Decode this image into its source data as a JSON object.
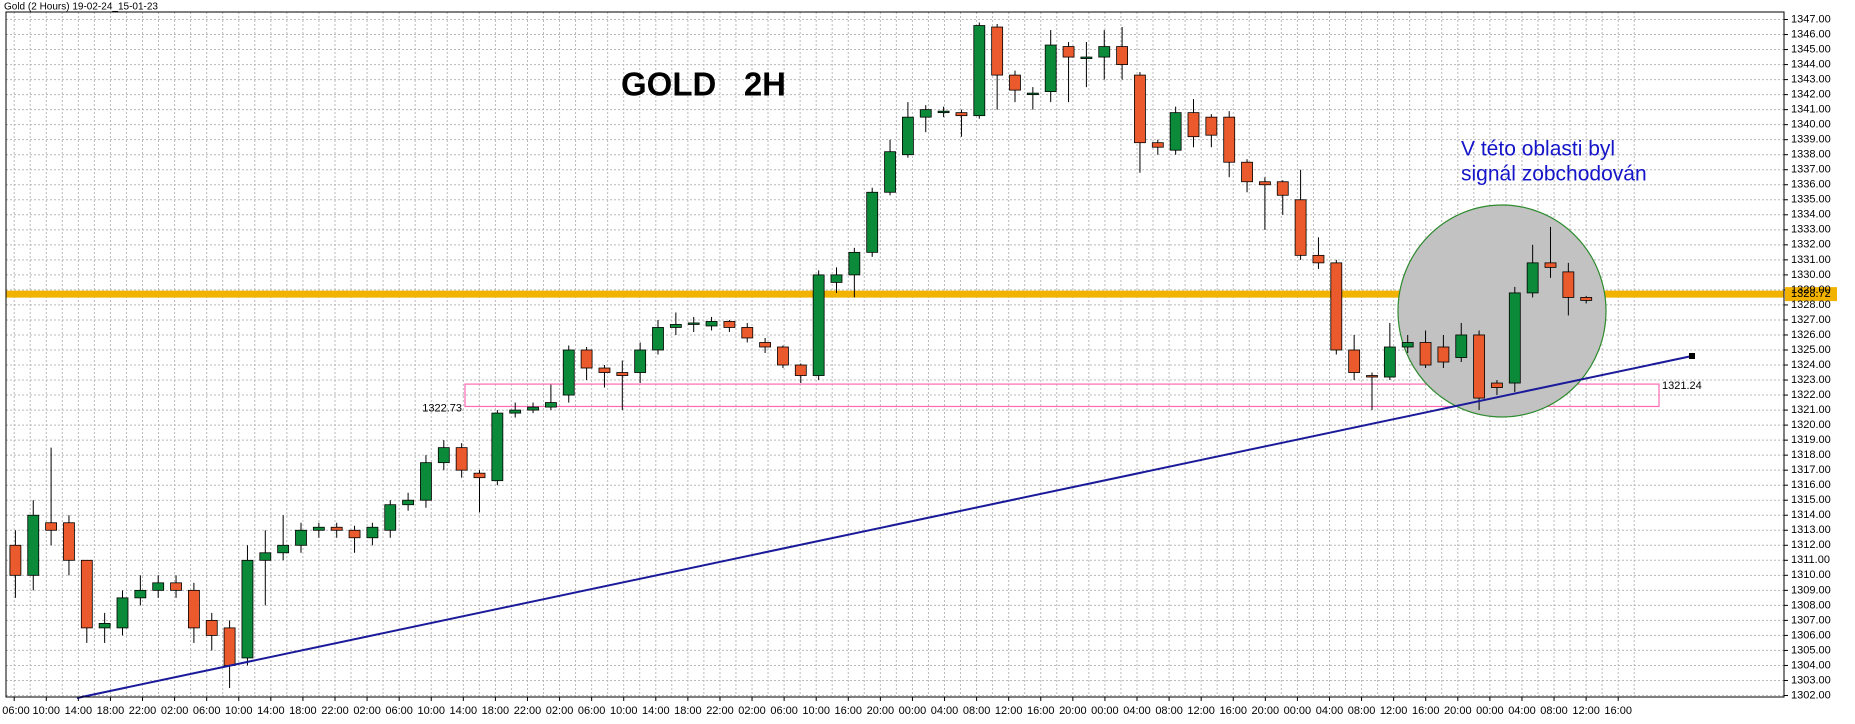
{
  "chart_data": {
    "type": "candlestick",
    "title": "Gold (2 Hours) 19-02-24_15-01-23",
    "heading": "GOLD   2H",
    "annotation": [
      "V této oblasti byl",
      "signál zobchodován"
    ],
    "up_color": "#0b8a3a",
    "down_color": "#ea5a2c",
    "open": [
      1312,
      1310,
      1313.5,
      1313.5,
      1311,
      1306.5,
      1306.5,
      1308.5,
      1309,
      1309.5,
      1309,
      1307,
      1306.5,
      1304.5,
      1311,
      1311.5,
      1312,
      1313,
      1313.2,
      1313,
      1312.5,
      1313,
      1314.7,
      1315,
      1317.5,
      1318.5,
      1316.8,
      1316.3,
      1320.8,
      1321,
      1321.2,
      1322,
      1325,
      1323.8,
      1323.5,
      1323.5,
      1325,
      1326.5,
      1326.7,
      1326.6,
      1326.9,
      1326.5,
      1325.5,
      1325.2,
      1324,
      1323.3,
      1329.5,
      1330,
      1331.5,
      1335.5,
      1338,
      1340.5,
      1340.8,
      1340.8,
      1340.6,
      1346.5,
      1343.3,
      1342,
      1342.2,
      1345.2,
      1344.4,
      1344.5,
      1345.2,
      1343.3,
      1338.8,
      1338.3,
      1340.8,
      1340.5,
      1340.5,
      1337.5,
      1336.2,
      1336.2,
      1335,
      1331.3,
      1330.8,
      1325,
      1323.3,
      1323.2,
      1325.2,
      1325.5,
      1325.2,
      1324.5,
      1326,
      1322.8,
      1322.8,
      1328.8,
      1330.8,
      1330.2,
      1328.5
    ],
    "high": [
      1313,
      1315,
      1318.5,
      1314,
      1311,
      1307.5,
      1309,
      1310,
      1310,
      1310,
      1309.5,
      1307.5,
      1307,
      1312,
      1313,
      1314,
      1313.5,
      1313.5,
      1313.5,
      1313.3,
      1313.5,
      1315,
      1315.5,
      1318,
      1319,
      1318.8,
      1317,
      1321,
      1321.5,
      1321.5,
      1322.7,
      1325.3,
      1325.2,
      1324,
      1324.3,
      1325.5,
      1327,
      1327.5,
      1327.2,
      1327.2,
      1327,
      1326.8,
      1325.8,
      1325.3,
      1324.1,
      1330.3,
      1330.5,
      1331.8,
      1335.8,
      1339,
      1341.5,
      1341.3,
      1341.2,
      1341,
      1346.8,
      1346.7,
      1343.6,
      1342.5,
      1346.3,
      1345.5,
      1345.5,
      1346.3,
      1346.5,
      1343.5,
      1339,
      1341.2,
      1341.7,
      1340.7,
      1340.9,
      1337.7,
      1336.5,
      1336.3,
      1337,
      1332.5,
      1331,
      1326,
      1323.5,
      1326.8,
      1326,
      1326.3,
      1326,
      1326.8,
      1326.3,
      1323,
      1329.2,
      1332,
      1333.2,
      1330.8,
      1328.6
    ],
    "low": [
      1308.5,
      1309,
      1312,
      1310,
      1305.5,
      1305.5,
      1306,
      1308,
      1308.5,
      1308.5,
      1305.5,
      1305,
      1302.5,
      1304,
      1308,
      1311,
      1311.5,
      1312.5,
      1312.5,
      1311.5,
      1312,
      1312.5,
      1314.3,
      1314.5,
      1317,
      1316.5,
      1314.2,
      1316,
      1320.5,
      1320.8,
      1321,
      1321.5,
      1323,
      1322.5,
      1321,
      1322.8,
      1324.7,
      1326,
      1326.2,
      1326.3,
      1326.2,
      1325.5,
      1324.8,
      1323.8,
      1322.8,
      1323,
      1328.8,
      1328.5,
      1331.2,
      1335.3,
      1337.8,
      1339.5,
      1340.5,
      1339.2,
      1340.4,
      1341,
      1341.5,
      1341,
      1341.5,
      1341.5,
      1342.5,
      1343,
      1343,
      1336.8,
      1338,
      1338,
      1338.5,
      1338.5,
      1336.5,
      1335.5,
      1333,
      1334,
      1331,
      1330.4,
      1324.7,
      1323,
      1321,
      1323,
      1324.8,
      1323.8,
      1323.8,
      1324.2,
      1321,
      1322,
      1322.2,
      1328.5,
      1329.8,
      1327.3,
      1328.1
    ],
    "close": [
      1310,
      1314,
      1313,
      1311,
      1306.5,
      1306.8,
      1308.5,
      1309,
      1309.5,
      1309,
      1306.5,
      1306,
      1304,
      1311,
      1311.5,
      1312,
      1313,
      1313.2,
      1313,
      1312.5,
      1313.2,
      1314.7,
      1315,
      1317.5,
      1318.5,
      1317,
      1316.5,
      1320.8,
      1321,
      1321.2,
      1321.5,
      1325,
      1323.8,
      1323.5,
      1323.3,
      1325,
      1326.5,
      1326.7,
      1326.8,
      1326.9,
      1326.5,
      1325.8,
      1325.2,
      1324,
      1323.3,
      1330,
      1330,
      1331.5,
      1335.5,
      1338.2,
      1340.5,
      1341,
      1340.9,
      1340.6,
      1346.6,
      1343.3,
      1342.3,
      1342.1,
      1345.3,
      1344.5,
      1344.5,
      1345.2,
      1344,
      1338.8,
      1338.5,
      1340.8,
      1339.2,
      1339.3,
      1337.5,
      1336.2,
      1336,
      1335.3,
      1331.3,
      1330.8,
      1325,
      1323.5,
      1323.2,
      1325.2,
      1325.5,
      1324,
      1324.2,
      1326,
      1321.8,
      1322.5,
      1328.8,
      1330.8,
      1330.5,
      1328.5,
      1328.3
    ],
    "time_labels": [
      "06:00",
      "10:00",
      "14:00",
      "18:00",
      "22:00",
      "02:00",
      "06:00",
      "10:00",
      "14:00",
      "18:00",
      "22:00",
      "02:00",
      "06:00",
      "10:00",
      "14:00",
      "18:00",
      "22:00",
      "02:00",
      "06:00",
      "10:00",
      "14:00",
      "18:00",
      "22:00",
      "02:00",
      "06:00",
      "10:00",
      "16:00",
      "20:00",
      "00:00",
      "04:00",
      "08:00",
      "12:00",
      "16:00",
      "20:00",
      "00:00",
      "04:00",
      "08:00",
      "12:00",
      "16:00",
      "20:00",
      "00:00",
      "04:00",
      "08:00",
      "12:00",
      "16:00",
      "20:00",
      "00:00",
      "04:00",
      "08:00",
      "12:00",
      "16:00"
    ],
    "level": 1328.72,
    "level_color": "#f2b200",
    "zone": {
      "top": 1322.73,
      "bottom": 1321.24,
      "color": "#ff69b4"
    },
    "ylim": [
      1301.9,
      1347.5
    ],
    "yticks": [
      {
        "value": 1302,
        "label": "1302.00"
      },
      {
        "value": 1303,
        "label": "1303.00"
      },
      {
        "value": 1304,
        "label": "1304.00"
      },
      {
        "value": 1305,
        "label": "1305.00"
      },
      {
        "value": 1306,
        "label": "1306.00"
      },
      {
        "value": 1307,
        "label": "1307.00"
      },
      {
        "value": 1308,
        "label": "1308.00"
      },
      {
        "value": 1309,
        "label": "1309.00"
      },
      {
        "value": 1310,
        "label": "1310.00"
      },
      {
        "value": 1311,
        "label": "1311.00"
      },
      {
        "value": 1312,
        "label": "1312.00"
      },
      {
        "value": 1313,
        "label": "1313.00"
      },
      {
        "value": 1314,
        "label": "1314.00"
      },
      {
        "value": 1315,
        "label": "1315.00"
      },
      {
        "value": 1316,
        "label": "1316.00"
      },
      {
        "value": 1317,
        "label": "1317.00"
      },
      {
        "value": 1318,
        "label": "1318.00"
      },
      {
        "value": 1319,
        "label": "1319.00"
      },
      {
        "value": 1320,
        "label": "1320.00"
      },
      {
        "value": 1321,
        "label": "1321.00"
      },
      {
        "value": 1322,
        "label": "1322.00"
      },
      {
        "value": 1323,
        "label": "1323.00"
      },
      {
        "value": 1324,
        "label": "1324.00"
      },
      {
        "value": 1325,
        "label": "1325.00"
      },
      {
        "value": 1326,
        "label": "1326.00"
      },
      {
        "value": 1327,
        "label": "1327.00"
      },
      {
        "value": 1328,
        "label": "1328.00"
      },
      {
        "value": 1329,
        "label": "1329.00"
      },
      {
        "value": 1330,
        "label": "1330.00"
      },
      {
        "value": 1331,
        "label": "1331.00"
      },
      {
        "value": 1332,
        "label": "1332.00"
      },
      {
        "value": 1333,
        "label": "1333.00"
      },
      {
        "value": 1334,
        "label": "1334.00"
      },
      {
        "value": 1335,
        "label": "1335.00"
      },
      {
        "value": 1336,
        "label": "1336.00"
      },
      {
        "value": 1337,
        "label": "1337.00"
      },
      {
        "value": 1338,
        "label": "1338.00"
      },
      {
        "value": 1339,
        "label": "1339.00"
      },
      {
        "value": 1340,
        "label": "1340.00"
      },
      {
        "value": 1341,
        "label": "1341.00"
      },
      {
        "value": 1342,
        "label": "1342.00"
      },
      {
        "value": 1343,
        "label": "1343.00"
      },
      {
        "value": 1344,
        "label": "1344.00"
      },
      {
        "value": 1345,
        "label": "1345.00"
      },
      {
        "value": 1346,
        "label": "1346.00"
      },
      {
        "value": 1347,
        "label": "1347.00"
      }
    ],
    "grid": true
  }
}
